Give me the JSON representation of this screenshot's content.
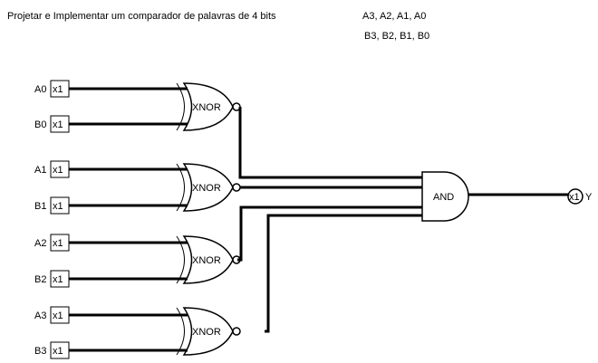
{
  "title": "Projetar e Implementar um comparador de palavras de 4 bits",
  "notes": [
    "A3, A2, A1, A0",
    "B3, B2, B1, B0"
  ],
  "inputs": [
    {
      "label": "A0",
      "device": "x1"
    },
    {
      "label": "B0",
      "device": "x1"
    },
    {
      "label": "A1",
      "device": "x1"
    },
    {
      "label": "B1",
      "device": "x1"
    },
    {
      "label": "A2",
      "device": "x1"
    },
    {
      "label": "B2",
      "device": "x1"
    },
    {
      "label": "A3",
      "device": "x1"
    },
    {
      "label": "B3",
      "device": "x1"
    }
  ],
  "xnor_gates": [
    {
      "label": "XNOR",
      "inputs": [
        "A0",
        "B0"
      ]
    },
    {
      "label": "XNOR",
      "inputs": [
        "A1",
        "B1"
      ]
    },
    {
      "label": "XNOR",
      "inputs": [
        "A2",
        "B2"
      ]
    },
    {
      "label": "XNOR",
      "inputs": [
        "A3",
        "B3"
      ]
    }
  ],
  "and_gate": {
    "label": "AND"
  },
  "output": {
    "label": "Y",
    "device": "x1"
  }
}
